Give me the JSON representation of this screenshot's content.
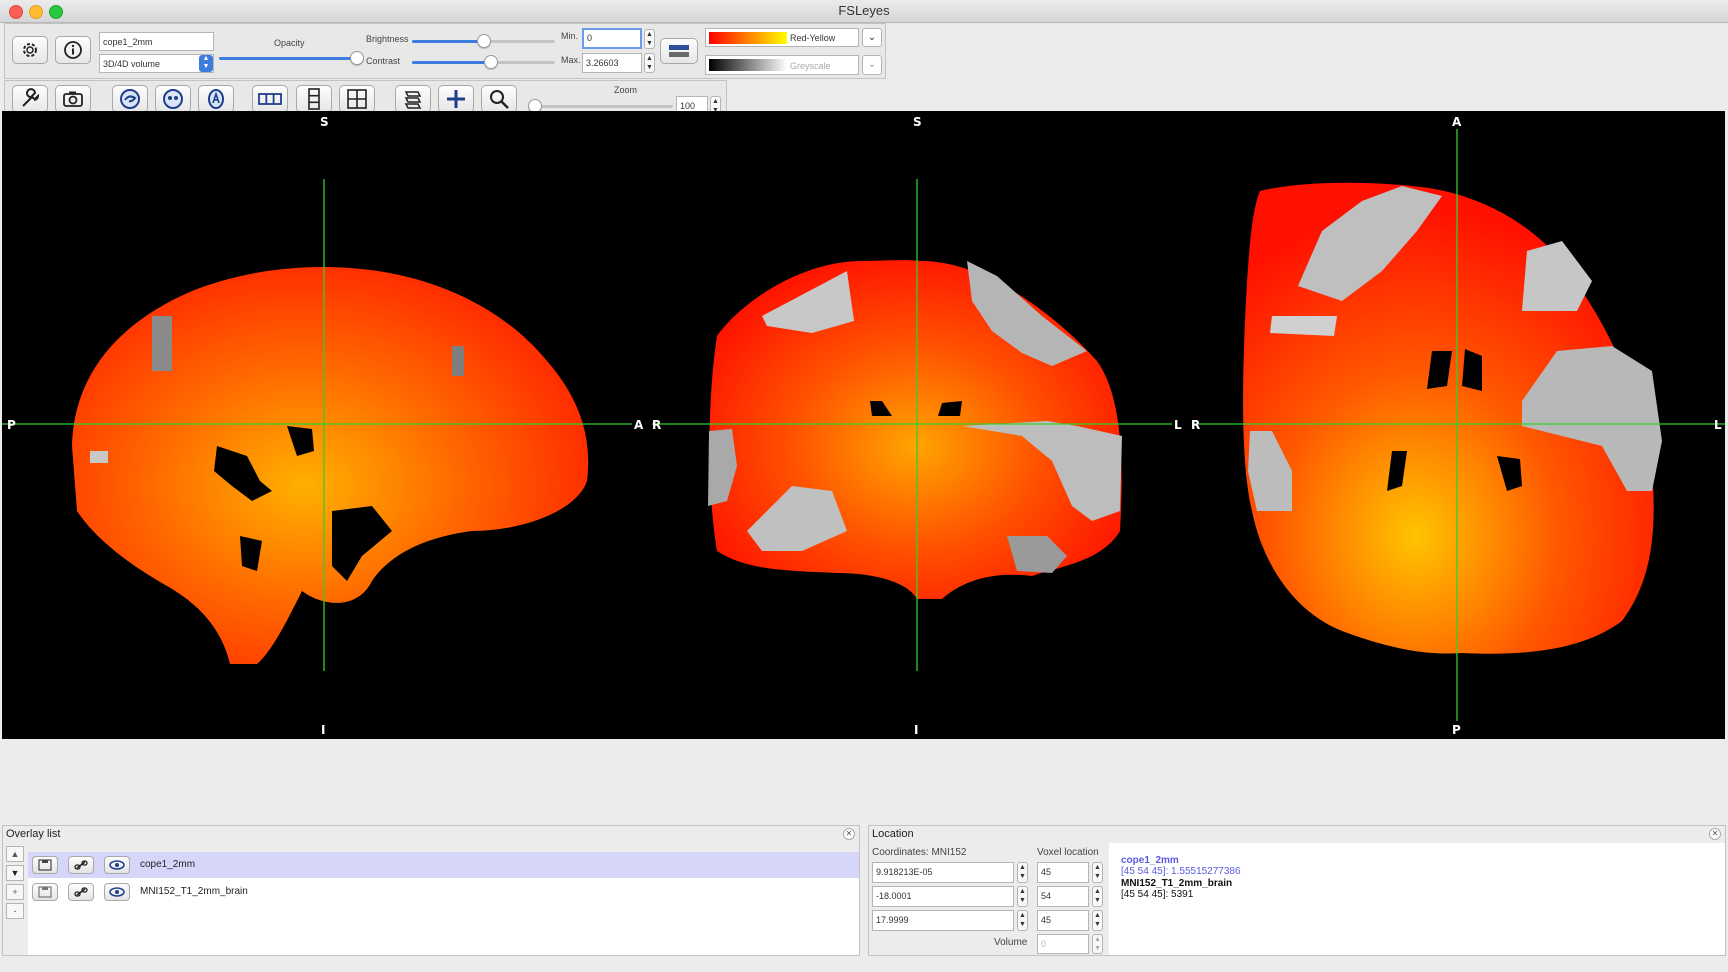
{
  "window": {
    "title": "FSLeyes"
  },
  "overlay_toolbar": {
    "overlay_name": "cope1_2mm",
    "display_type": "3D/4D volume",
    "opacity_label": "Opacity",
    "opacity_value": 1.0,
    "brightness_label": "Brightness",
    "brightness_value": 0.5,
    "contrast_label": "Contrast",
    "contrast_value": 0.55,
    "min_label": "Min.",
    "min_value": "0",
    "max_label": "Max.",
    "max_value": "3.26603",
    "colormap_primary": "Red-Yellow",
    "colormap_secondary": "Greyscale"
  },
  "ortho_toolbar": {
    "zoom_label": "Zoom",
    "zoom_value": "100",
    "zoom_fraction": 0.0
  },
  "views": {
    "sagittal": {
      "top": "S",
      "bottom": "I",
      "left": "P",
      "right": "A"
    },
    "coronal": {
      "top": "S",
      "bottom": "I",
      "left": "R",
      "right": "L"
    },
    "axial": {
      "top": "A",
      "bottom": "P",
      "left": "R",
      "right": "L"
    },
    "crosshair_color": "#2fd12f"
  },
  "overlay_list": {
    "title": "Overlay list",
    "items": [
      {
        "name": "cope1_2mm",
        "selected": true
      },
      {
        "name": "MNI152_T1_2mm_brain",
        "selected": false
      }
    ],
    "side_buttons": [
      "▲",
      "▼",
      "+",
      "-"
    ]
  },
  "location": {
    "title": "Location",
    "coords_label": "Coordinates: MNI152",
    "coords": [
      "9.918213E-05",
      "-18.0001",
      "17.9999"
    ],
    "voxel_label": "Voxel location",
    "voxel": [
      "45",
      "54",
      "45"
    ],
    "volume_label": "Volume",
    "volume_value": "0",
    "info": [
      {
        "name": "cope1_2mm",
        "value": "[45 54 45]: 1.55515277386",
        "color": "#5a5ae0"
      },
      {
        "name": "MNI152_T1_2mm_brain",
        "value": "[45 54 45]: 5391",
        "color": "#111111"
      }
    ]
  }
}
